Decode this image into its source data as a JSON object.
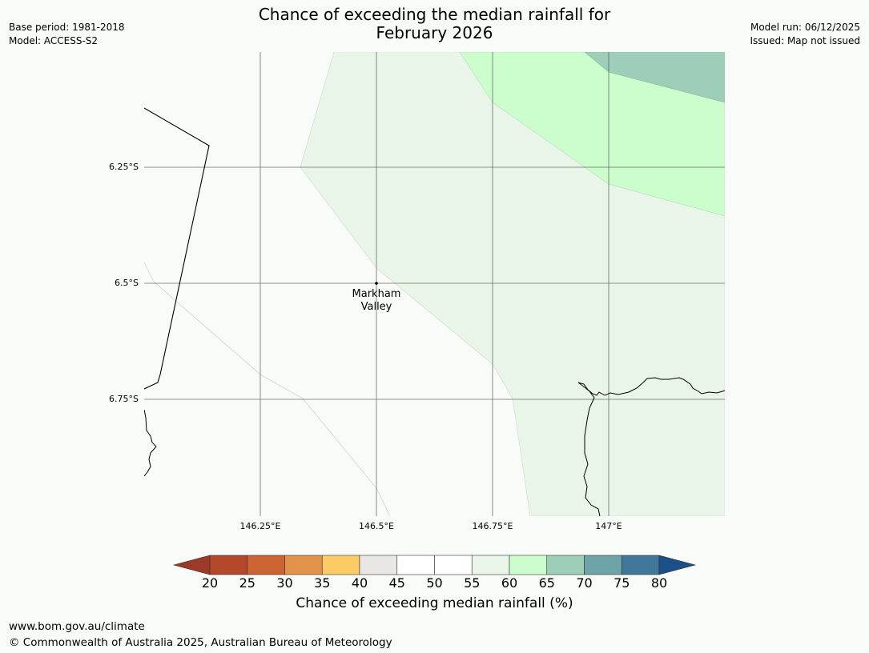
{
  "title": {
    "line1": "Chance of exceeding the median rainfall for",
    "line2": "February 2026"
  },
  "meta_left": {
    "base_period": "Base period: 1981-2018",
    "model": "Model: ACCESS-S2"
  },
  "meta_right": {
    "model_run": "Model run: 06/12/2025",
    "issued": "Issued: Map not issued"
  },
  "map": {
    "lat_labels": [
      "6.25°S",
      "6.5°S",
      "6.75°S"
    ],
    "lon_labels": [
      "146.25°E",
      "146.5°E",
      "146.75°E",
      "147°E"
    ],
    "place": {
      "line1": "Markham",
      "line2": "Valley"
    },
    "colors": {
      "band_55_60": "#eaf5ea",
      "band_60_65": "#ccfdcc",
      "band_65_70": "#9dcfb8",
      "background": "#f8fbf8",
      "grid": "#555555",
      "coast": "#000000"
    }
  },
  "colorbar": {
    "ticks": [
      "20",
      "25",
      "30",
      "35",
      "40",
      "45",
      "50",
      "55",
      "60",
      "65",
      "70",
      "75",
      "80"
    ],
    "colors": [
      "#9b3a26",
      "#b3482a",
      "#cc6333",
      "#e3924a",
      "#fdcb65",
      "#e9e7e5",
      "#ffffff",
      "#ffffff",
      "#eaf5ea",
      "#ccfdcc",
      "#9dcfb8",
      "#6ea4a8",
      "#40789b",
      "#1b4f87"
    ],
    "label": "Chance of exceeding median rainfall (%)"
  },
  "footer": {
    "url": "www.bom.gov.au/climate",
    "copyright": "© Commonwealth of Australia 2025, Australian Bureau of Meteorology"
  }
}
